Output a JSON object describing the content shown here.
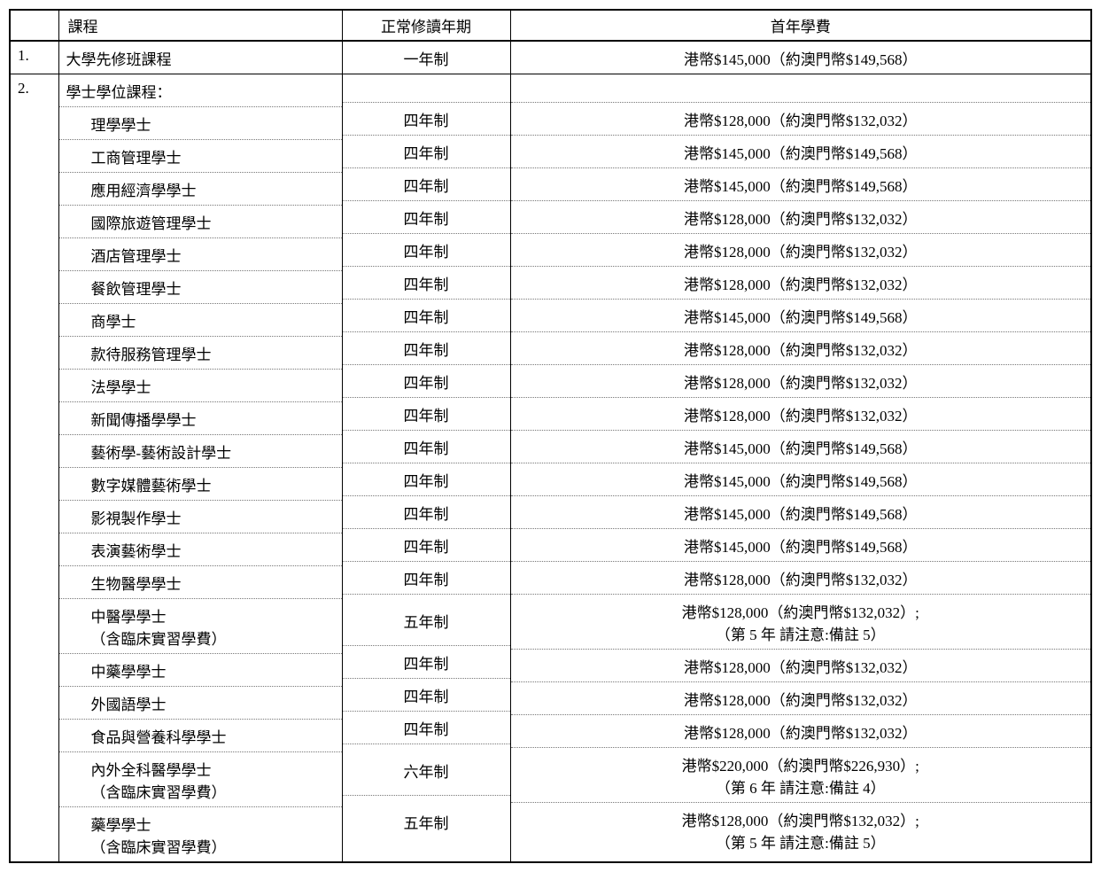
{
  "headers": {
    "num": "",
    "course": "課程",
    "duration": "正常修讀年期",
    "fee": "首年學費"
  },
  "section1": {
    "num": "1.",
    "rows": [
      {
        "course": "大學先修班課程",
        "duration": "一年制",
        "fee": "港幣$145,000（約澳門幣$149,568）"
      }
    ]
  },
  "section2": {
    "num": "2.",
    "heading": "學士學位課程：",
    "rows": [
      {
        "course": "理學學士",
        "duration": "四年制",
        "fee": "港幣$128,000（約澳門幣$132,032）"
      },
      {
        "course": "工商管理學士",
        "duration": "四年制",
        "fee": "港幣$145,000（約澳門幣$149,568）"
      },
      {
        "course": "應用經濟學學士",
        "duration": "四年制",
        "fee": "港幣$145,000（約澳門幣$149,568）"
      },
      {
        "course": "國際旅遊管理學士",
        "duration": "四年制",
        "fee": "港幣$128,000（約澳門幣$132,032）"
      },
      {
        "course": "酒店管理學士",
        "duration": "四年制",
        "fee": "港幣$128,000（約澳門幣$132,032）"
      },
      {
        "course": "餐飲管理學士",
        "duration": "四年制",
        "fee": "港幣$128,000（約澳門幣$132,032）"
      },
      {
        "course": "商學士",
        "duration": "四年制",
        "fee": "港幣$145,000（約澳門幣$149,568）"
      },
      {
        "course": "款待服務管理學士",
        "duration": "四年制",
        "fee": "港幣$128,000（約澳門幣$132,032）"
      },
      {
        "course": "法學學士",
        "duration": "四年制",
        "fee": "港幣$128,000（約澳門幣$132,032）"
      },
      {
        "course": "新聞傳播學學士",
        "duration": "四年制",
        "fee": "港幣$128,000（約澳門幣$132,032）"
      },
      {
        "course": "藝術學-藝術設計學士",
        "duration": "四年制",
        "fee": "港幣$145,000（約澳門幣$149,568）"
      },
      {
        "course": "數字媒體藝術學士",
        "duration": "四年制",
        "fee": "港幣$145,000（約澳門幣$149,568）"
      },
      {
        "course": "影視製作學士",
        "duration": "四年制",
        "fee": "港幣$145,000（約澳門幣$149,568）"
      },
      {
        "course": "表演藝術學士",
        "duration": "四年制",
        "fee": "港幣$145,000（約澳門幣$149,568）"
      },
      {
        "course": "生物醫學學士",
        "duration": "四年制",
        "fee": "港幣$128,000（約澳門幣$132,032）"
      },
      {
        "course": "中醫學學士<br>（含臨床實習學費）",
        "duration": "五年制",
        "fee": "港幣$128,000（約澳門幣$132,032）;<br>（第 5 年 請注意:備註 5）"
      },
      {
        "course": "中藥學學士",
        "duration": "四年制",
        "fee": "港幣$128,000（約澳門幣$132,032）"
      },
      {
        "course": "外國語學士",
        "duration": "四年制",
        "fee": "港幣$128,000（約澳門幣$132,032）"
      },
      {
        "course": "食品與營養科學學士",
        "duration": "四年制",
        "fee": "港幣$128,000（約澳門幣$132,032）"
      },
      {
        "course": "內外全科醫學學士<br>（含臨床實習學費）",
        "duration": "六年制",
        "fee": "港幣$220,000（約澳門幣$226,930）;<br>（第 6 年 請注意:備註 4）"
      },
      {
        "course": "藥學學士<br>（含臨床實習學費）",
        "duration": "五年制",
        "fee": "港幣$128,000（約澳門幣$132,032）;<br>（第 5 年 請注意:備註 5）"
      }
    ]
  }
}
